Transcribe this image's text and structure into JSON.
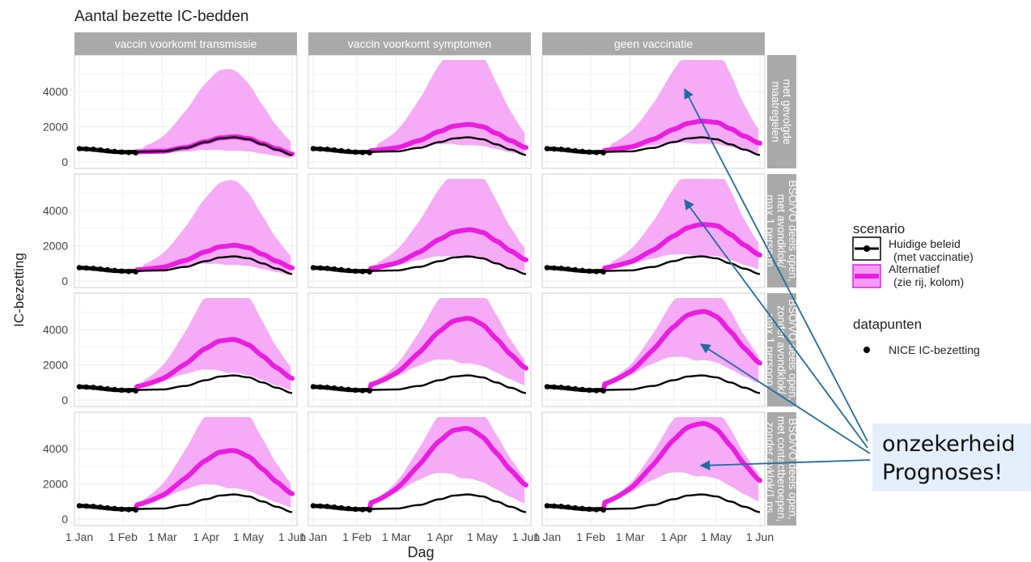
{
  "chart_data": {
    "type": "line",
    "title": "Aantal bezette IC-bedden",
    "xlabel": "Dag",
    "ylabel": "IC-bezetting",
    "x_ticks": [
      "1 Jan",
      "1 Feb",
      "1 Mar",
      "1 Apr",
      "1 May",
      "1 Jun"
    ],
    "y_ticks": [
      0,
      2000,
      4000
    ],
    "ylim": [
      0,
      5800
    ],
    "x_range_days": [
      0,
      151
    ],
    "grid": true,
    "legend_position": "right",
    "columns": [
      "vaccin voorkomt transmissie",
      "vaccin voorkomt symptomen",
      "geen vaccinatie"
    ],
    "rows": [
      "met gevolgde maatregelen",
      "BSO/VO deels open, met avondklok/ max 1 persoon",
      "BSO/VO deels open, zonder avondklok/ max 1 persoon",
      "BSO/VO deels open, met contactberoepen, zonder avklok/1 ps."
    ],
    "legend": {
      "scenario_title": "scenario",
      "scenario_items": [
        {
          "name": "Huidige beleid",
          "sub": "(met vaccinatie)",
          "color": "#000000"
        },
        {
          "name": "Alternatief",
          "sub": "(zie rij, kolom)",
          "color": "#e91ee0"
        }
      ],
      "datapoints_title": "datapunten",
      "datapoints_item": "NICE IC-bezetting"
    },
    "baseline": {
      "name": "Huidige beleid",
      "x_days": [
        0,
        31,
        59,
        75,
        90,
        100,
        110,
        120,
        130,
        140,
        151
      ],
      "y": [
        750,
        560,
        600,
        800,
        1130,
        1340,
        1400,
        1290,
        1000,
        700,
        400
      ]
    },
    "nice_points": {
      "name": "NICE IC-bezetting",
      "x_days": [
        0,
        5,
        10,
        15,
        20,
        25,
        30,
        35,
        40
      ],
      "y": [
        760,
        740,
        720,
        680,
        640,
        600,
        560,
        540,
        520
      ]
    },
    "panels": [
      {
        "row": 0,
        "col": 0,
        "peak_day": 104,
        "peak": 1390,
        "end": 500,
        "band_upper_peak": 5200,
        "band_lower_end": 100
      },
      {
        "row": 0,
        "col": 1,
        "peak_day": 108,
        "peak": 2120,
        "end": 700,
        "band_upper_peak": 6800,
        "band_lower_end": 300
      },
      {
        "row": 0,
        "col": 2,
        "peak_day": 113,
        "peak": 2300,
        "end": 900,
        "band_upper_peak": 6800,
        "band_lower_end": 500
      },
      {
        "row": 1,
        "col": 0,
        "peak_day": 106,
        "peak": 2000,
        "end": 650,
        "band_upper_peak": 5650,
        "band_lower_end": 200
      },
      {
        "row": 1,
        "col": 1,
        "peak_day": 109,
        "peak": 2900,
        "end": 900,
        "band_upper_peak": 6500,
        "band_lower_end": 300
      },
      {
        "row": 1,
        "col": 2,
        "peak_day": 113,
        "peak": 3200,
        "end": 1100,
        "band_upper_peak": 6800,
        "band_lower_end": 500
      },
      {
        "row": 2,
        "col": 0,
        "peak_day": 104,
        "peak": 3400,
        "end": 800,
        "band_upper_peak": 6800,
        "band_lower_end": 300
      },
      {
        "row": 2,
        "col": 1,
        "peak_day": 106,
        "peak": 4600,
        "end": 1100,
        "band_upper_peak": 6800,
        "band_lower_end": 400
      },
      {
        "row": 2,
        "col": 2,
        "peak_day": 108,
        "peak": 5000,
        "end": 1300,
        "band_upper_peak": 6800,
        "band_lower_end": 600
      },
      {
        "row": 3,
        "col": 0,
        "peak_day": 104,
        "peak": 3850,
        "end": 900,
        "band_upper_peak": 6800,
        "band_lower_end": 300
      },
      {
        "row": 3,
        "col": 1,
        "peak_day": 104,
        "peak": 5100,
        "end": 1100,
        "band_upper_peak": 6800,
        "band_lower_end": 400
      },
      {
        "row": 3,
        "col": 2,
        "peak_day": 108,
        "peak": 5400,
        "end": 1300,
        "band_upper_peak": 6800,
        "band_lower_end": 700
      }
    ]
  },
  "annotation": {
    "line1": "onzekerheid",
    "line2": "Prognoses!",
    "color": "#1e6d9e"
  },
  "colors": {
    "alt_line": "#e91ee0",
    "band": "#f59cf5",
    "baseline": "#000000",
    "strip_bg": "#a9a9a9",
    "panel_border": "#cfcfcf",
    "grid": "#ececec"
  }
}
